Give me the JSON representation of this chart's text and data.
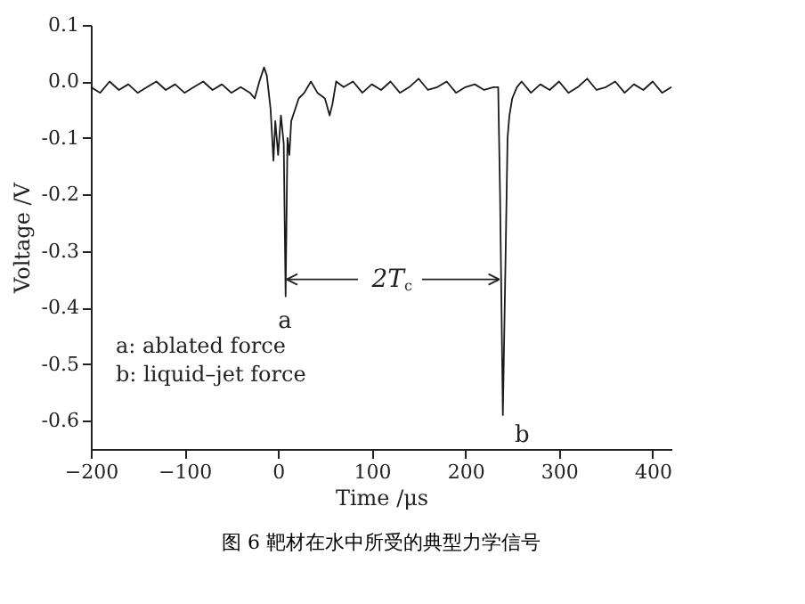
{
  "chart_data": {
    "type": "line",
    "title": "图 6 靶材在水中所受的典型力学信号",
    "xlabel": "Time /μs",
    "ylabel": "Voltage /V",
    "x": [
      -200,
      -190,
      -180,
      -170,
      -160,
      -150,
      -140,
      -130,
      -120,
      -110,
      -100,
      -90,
      -80,
      -70,
      -60,
      -50,
      -40,
      -30,
      -25,
      -20,
      -15,
      -12,
      -8,
      -5,
      -3,
      0,
      3,
      6,
      8,
      10,
      12,
      14,
      18,
      22,
      28,
      35,
      42,
      50,
      55,
      58,
      62,
      70,
      80,
      90,
      100,
      110,
      120,
      130,
      140,
      150,
      160,
      170,
      180,
      190,
      200,
      210,
      220,
      230,
      235,
      237,
      240,
      243,
      245,
      247,
      250,
      255,
      260,
      270,
      280,
      290,
      300,
      310,
      320,
      330,
      340,
      350,
      360,
      370,
      380,
      390,
      400,
      410,
      420
    ],
    "series": [
      {
        "color": "#1a1a1a",
        "values": [
          -0.01,
          -0.02,
          0.0,
          -0.015,
          -0.005,
          -0.02,
          -0.01,
          0.0,
          -0.015,
          -0.005,
          -0.02,
          -0.01,
          0.0,
          -0.015,
          -0.005,
          -0.02,
          -0.01,
          -0.02,
          -0.03,
          0.0,
          0.025,
          0.01,
          -0.05,
          -0.14,
          -0.07,
          -0.13,
          -0.06,
          -0.11,
          -0.38,
          -0.1,
          -0.13,
          -0.07,
          -0.05,
          -0.03,
          -0.02,
          0.0,
          -0.02,
          -0.03,
          -0.06,
          -0.04,
          0.0,
          -0.01,
          0.0,
          -0.02,
          -0.005,
          -0.015,
          0.0,
          -0.02,
          -0.01,
          0.005,
          -0.015,
          -0.01,
          0.0,
          -0.02,
          -0.01,
          -0.005,
          -0.015,
          -0.01,
          -0.01,
          -0.2,
          -0.59,
          -0.3,
          -0.1,
          -0.06,
          -0.03,
          -0.01,
          0.0,
          -0.02,
          -0.005,
          -0.015,
          0.0,
          -0.02,
          -0.01,
          0.005,
          -0.015,
          -0.01,
          0.0,
          -0.02,
          -0.005,
          -0.015,
          0.0,
          -0.02,
          -0.01
        ]
      }
    ],
    "xlim": [
      -200,
      420
    ],
    "xticks": [
      -200,
      -100,
      0,
      100,
      200,
      300,
      400
    ],
    "ylim": [
      -0.65,
      0.1
    ],
    "yticks": [
      {
        "value": 0.1,
        "label": "0.1"
      },
      {
        "value": 0.0,
        "label": "0.0"
      },
      {
        "value": -0.1,
        "label": "-0.1"
      },
      {
        "value": -0.2,
        "label": "-0.2"
      },
      {
        "value": -0.3,
        "label": "-0.3"
      },
      {
        "value": -0.4,
        "label": "-0.4"
      },
      {
        "value": -0.5,
        "label": "-0.5"
      },
      {
        "value": -0.6,
        "label": "-0.6"
      }
    ],
    "annotations": [
      "a",
      "b",
      {
        "text": "2T$_{c}$",
        "x": 238,
        "y": -0.35
      },
      "a: ablated force",
      "b: liquid–jet force"
    ],
    "grid": false,
    "marker": "none",
    "line_style": "solid"
  }
}
